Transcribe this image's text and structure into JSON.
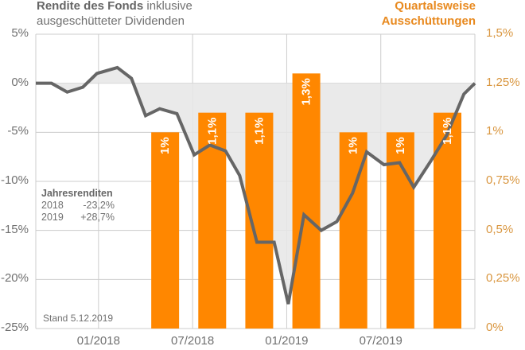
{
  "title_left": {
    "bold": "Rendite des Fonds",
    "normal": " inklusive",
    "line2": "ausgeschütteter Dividenden"
  },
  "title_right": {
    "line1": "Quartalsweise",
    "line2": "Ausschüttungen"
  },
  "annual_returns": {
    "heading": "Jahresrenditen",
    "rows": [
      {
        "year": "2018",
        "value": "-23,2%"
      },
      {
        "year": "2019",
        "value": "+28,7%"
      }
    ]
  },
  "stand": "Stand 5.12.2019",
  "colors": {
    "bar": "#FF8700",
    "line": "#666666",
    "fill": "#E6E6E6",
    "grid": "#CCCCCC",
    "right_axis": "#D9963F"
  },
  "chart_data": {
    "type": "bar+line",
    "title": "Rendite des Fonds inklusive ausgeschütteter Dividenden",
    "y_left": {
      "label": "Rendite",
      "range": [
        -25,
        5
      ],
      "ticks": [
        5,
        0,
        -5,
        -10,
        -15,
        -20,
        -25
      ],
      "tick_labels": [
        "5%",
        "0%",
        "-5%",
        "-10%",
        "-15%",
        "-20%",
        "-25%"
      ]
    },
    "y_right": {
      "label": "Quartalsweise Ausschüttungen",
      "range": [
        0,
        1.5
      ],
      "ticks": [
        1.5,
        1.25,
        1,
        0.75,
        0.5,
        0.25,
        0
      ],
      "tick_labels": [
        "1,5%",
        "1,25%",
        "1%",
        "0,75%",
        "0,5%",
        "0,25%",
        "0%"
      ]
    },
    "x": {
      "range_months": [
        0,
        28
      ],
      "ticks": [
        4,
        10,
        16,
        22
      ],
      "tick_labels": [
        "01/2018",
        "07/2018",
        "01/2019",
        "07/2019"
      ],
      "grid_months": [
        0,
        4,
        10,
        16,
        22,
        28
      ]
    },
    "grid": true,
    "bars": {
      "name": "Quartalsweise Ausschüttungen",
      "x_months": [
        8.25,
        11.25,
        14.25,
        17.25,
        20.25,
        23.25,
        26.25
      ],
      "values": [
        1.0,
        1.1,
        1.1,
        1.3,
        1.0,
        1.0,
        1.1
      ],
      "labels": [
        "1%",
        "1,1%",
        "1,1%",
        "1,3%",
        "1%",
        "1%",
        "1,1%"
      ]
    },
    "line": {
      "name": "Rendite des Fonds",
      "x_months": [
        0,
        1,
        2,
        3,
        3.9,
        5.2,
        6.1,
        7,
        7.9,
        9,
        10.1,
        11.1,
        12.1,
        13,
        14.1,
        15.2,
        16.1,
        17.1,
        18.2,
        19.2,
        20.2,
        21.1,
        22.2,
        23.2,
        24.1,
        25.2,
        26.2,
        27.3,
        28
      ],
      "values": [
        0,
        0,
        -0.9,
        -0.4,
        1.0,
        1.6,
        0.5,
        -3.3,
        -2.6,
        -3.1,
        -7.3,
        -6.3,
        -6.9,
        -9.4,
        -16.2,
        -16.2,
        -22.5,
        -13.4,
        -15.0,
        -14.1,
        -11.2,
        -7.0,
        -8.3,
        -8.1,
        -10.6,
        -7.9,
        -5.3,
        -1.1,
        0
      ]
    }
  }
}
